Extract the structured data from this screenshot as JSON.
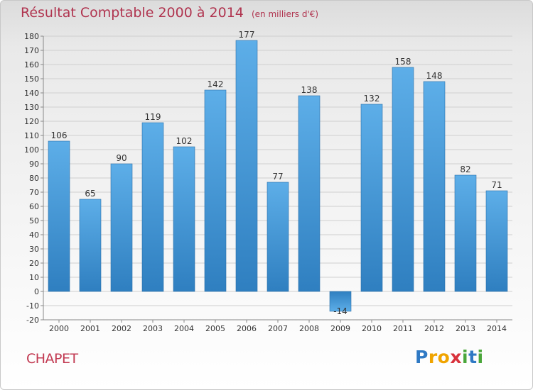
{
  "title": "Résultat Comptable 2000 à 2014",
  "subtitle": "(en milliers d'€)",
  "commune": "CHAPET",
  "brand": "Proxiti",
  "colors": {
    "title": "#b0344f",
    "bar_light": "#5daee8",
    "bar_dark": "#2f7fc0",
    "grid": "#cfcfcf"
  },
  "chart_data": {
    "type": "bar",
    "title": "Résultat Comptable 2000 à 2014",
    "subtitle": "(en milliers d'€)",
    "xlabel": "",
    "ylabel": "",
    "ylim": [
      -20,
      180
    ],
    "ytick_step": 10,
    "grid": true,
    "categories": [
      "2000",
      "2001",
      "2002",
      "2003",
      "2004",
      "2005",
      "2006",
      "2007",
      "2008",
      "2009",
      "2010",
      "2011",
      "2012",
      "2013",
      "2014"
    ],
    "values": [
      106,
      65,
      90,
      119,
      102,
      142,
      177,
      77,
      138,
      -14,
      132,
      158,
      148,
      82,
      71
    ]
  }
}
